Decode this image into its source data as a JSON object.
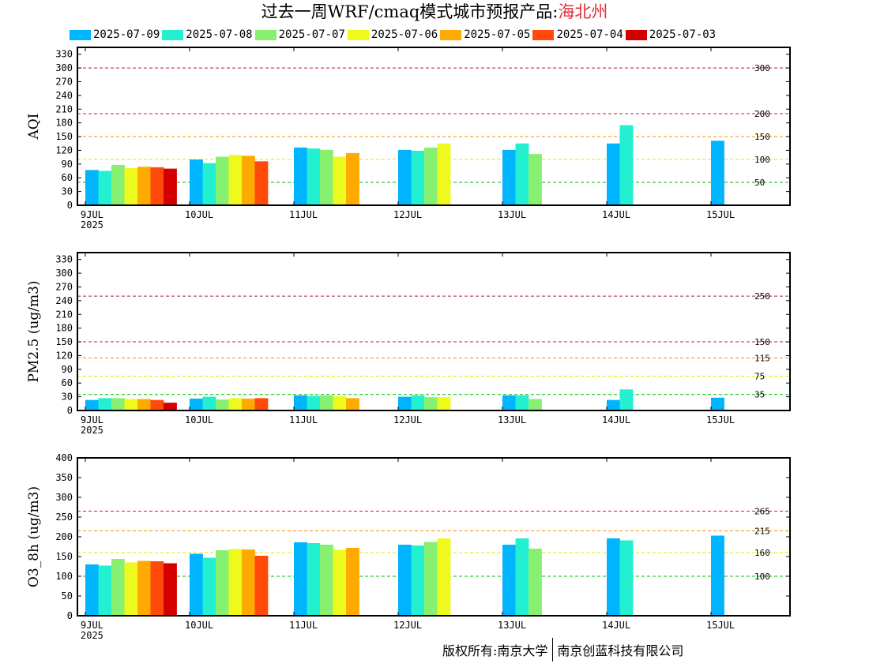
{
  "header": {
    "title_prefix": "过去一周WRF/cmaq模式城市预报产品:",
    "city": "海北州"
  },
  "legend": {
    "items": [
      {
        "label": "2025-07-09",
        "color": "#00b4ff"
      },
      {
        "label": "2025-07-08",
        "color": "#22f0d0"
      },
      {
        "label": "2025-07-07",
        "color": "#88f070"
      },
      {
        "label": "2025-07-06",
        "color": "#eefa1e"
      },
      {
        "label": "2025-07-05",
        "color": "#ffaa00"
      },
      {
        "label": "2025-07-04",
        "color": "#ff4a0a"
      },
      {
        "label": "2025-07-03",
        "color": "#d40000"
      }
    ]
  },
  "copyright": {
    "left": "版权所有:南京大学",
    "right": "南京创蓝科技有限公司"
  },
  "chart_data": [
    {
      "type": "bar",
      "ylabel": "AQI",
      "ylim": [
        0,
        345
      ],
      "yticks": [
        0,
        30,
        60,
        90,
        120,
        150,
        180,
        210,
        240,
        270,
        300,
        330
      ],
      "categories": [
        "9JUL",
        "10JUL",
        "11JUL",
        "12JUL",
        "13JUL",
        "14JUL",
        "15JUL"
      ],
      "year_label": "2025",
      "thresholds": [
        {
          "value": 300,
          "label": "300",
          "color": "#b01848"
        },
        {
          "value": 200,
          "label": "200",
          "color": "#d02020"
        },
        {
          "value": 150,
          "label": "150",
          "color": "#ff8c00"
        },
        {
          "value": 100,
          "label": "100",
          "color": "#e6e600"
        },
        {
          "value": 50,
          "label": "50",
          "color": "#00c000"
        }
      ],
      "series": [
        {
          "name": "2025-07-09",
          "values": [
            77,
            100,
            126,
            121,
            121,
            135,
            141
          ]
        },
        {
          "name": "2025-07-08",
          "values": [
            75,
            92,
            124,
            119,
            135,
            175,
            null
          ]
        },
        {
          "name": "2025-07-07",
          "values": [
            88,
            106,
            121,
            126,
            112,
            null,
            null
          ]
        },
        {
          "name": "2025-07-06",
          "values": [
            81,
            110,
            106,
            135,
            null,
            null,
            null
          ]
        },
        {
          "name": "2025-07-05",
          "values": [
            84,
            108,
            114,
            null,
            null,
            null,
            null
          ]
        },
        {
          "name": "2025-07-04",
          "values": [
            83,
            96,
            null,
            null,
            null,
            null,
            null
          ]
        },
        {
          "name": "2025-07-03",
          "values": [
            80,
            null,
            null,
            null,
            null,
            null,
            null
          ]
        }
      ]
    },
    {
      "type": "bar",
      "ylabel": "PM2.5 (ug/m3)",
      "ylim": [
        0,
        345
      ],
      "yticks": [
        0,
        30,
        60,
        90,
        120,
        150,
        180,
        210,
        240,
        270,
        300,
        330
      ],
      "categories": [
        "9JUL",
        "10JUL",
        "11JUL",
        "12JUL",
        "13JUL",
        "14JUL",
        "15JUL"
      ],
      "year_label": "2025",
      "thresholds": [
        {
          "value": 250,
          "label": "250",
          "color": "#b01848"
        },
        {
          "value": 150,
          "label": "150",
          "color": "#d02020"
        },
        {
          "value": 115,
          "label": "115",
          "color": "#ff8c00"
        },
        {
          "value": 75,
          "label": "75",
          "color": "#e6e600"
        },
        {
          "value": 35,
          "label": "35",
          "color": "#00c000"
        }
      ],
      "series": [
        {
          "name": "2025-07-09",
          "values": [
            23,
            26,
            33,
            30,
            33,
            23,
            28
          ]
        },
        {
          "name": "2025-07-08",
          "values": [
            27,
            30,
            32,
            33,
            33,
            46,
            null
          ]
        },
        {
          "name": "2025-07-07",
          "values": [
            27,
            24,
            33,
            29,
            25,
            null,
            null
          ]
        },
        {
          "name": "2025-07-06",
          "values": [
            25,
            27,
            31,
            29,
            null,
            null,
            null
          ]
        },
        {
          "name": "2025-07-05",
          "values": [
            25,
            26,
            27,
            null,
            null,
            null,
            null
          ]
        },
        {
          "name": "2025-07-04",
          "values": [
            23,
            27,
            null,
            null,
            null,
            null,
            null
          ]
        },
        {
          "name": "2025-07-03",
          "values": [
            17,
            null,
            null,
            null,
            null,
            null,
            null
          ]
        }
      ]
    },
    {
      "type": "bar",
      "ylabel": "O3_8h (ug/m3)",
      "ylim": [
        0,
        400
      ],
      "yticks": [
        0,
        50,
        100,
        150,
        200,
        250,
        300,
        350,
        400
      ],
      "categories": [
        "9JUL",
        "10JUL",
        "11JUL",
        "12JUL",
        "13JUL",
        "14JUL",
        "15JUL"
      ],
      "year_label": "2025",
      "thresholds": [
        {
          "value": 265,
          "label": "265",
          "color": "#d02020"
        },
        {
          "value": 215,
          "label": "215",
          "color": "#ff8c00"
        },
        {
          "value": 160,
          "label": "160",
          "color": "#e6e600"
        },
        {
          "value": 100,
          "label": "100",
          "color": "#00c000"
        }
      ],
      "series": [
        {
          "name": "2025-07-09",
          "values": [
            130,
            157,
            186,
            180,
            180,
            196,
            203
          ]
        },
        {
          "name": "2025-07-08",
          "values": [
            127,
            147,
            184,
            178,
            196,
            191,
            null
          ]
        },
        {
          "name": "2025-07-07",
          "values": [
            144,
            166,
            180,
            187,
            170,
            null,
            null
          ]
        },
        {
          "name": "2025-07-06",
          "values": [
            135,
            169,
            167,
            196,
            null,
            null,
            null
          ]
        },
        {
          "name": "2025-07-05",
          "values": [
            139,
            168,
            172,
            null,
            null,
            null,
            null
          ]
        },
        {
          "name": "2025-07-04",
          "values": [
            138,
            152,
            null,
            null,
            null,
            null,
            null
          ]
        },
        {
          "name": "2025-07-03",
          "values": [
            133,
            null,
            null,
            null,
            null,
            null,
            null
          ]
        }
      ]
    }
  ]
}
